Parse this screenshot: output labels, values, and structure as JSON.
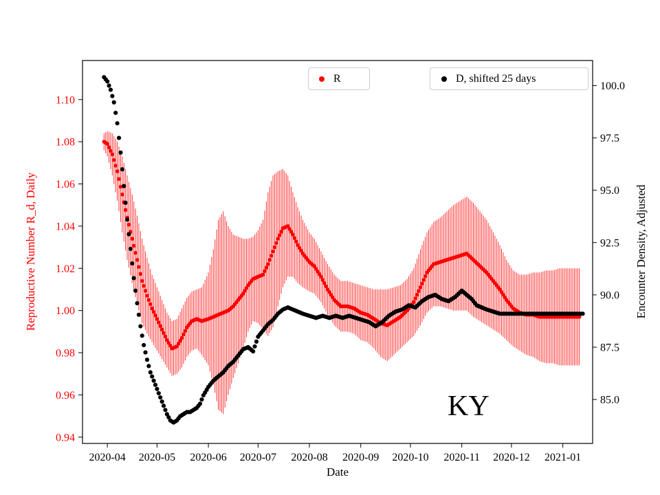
{
  "figure": {
    "state_label": "KY",
    "xlabel": "Date",
    "ylabel_left": "Reproductive Number R_d, Daily",
    "ylabel_right": "Encounter Density, Adjusted",
    "background": "#ffffff",
    "axis_line_color": "#000000",
    "legend_border_color": "#cccccc"
  },
  "legend": {
    "r": {
      "label": "R",
      "marker_color": "#ff0000"
    },
    "d": {
      "label": "D, shifted 25 days",
      "marker_color": "#000000"
    }
  },
  "chart_data": {
    "type": "scatter",
    "title": "",
    "grid": false,
    "legend_position": "top-inside, two separate boxes",
    "x_axis": {
      "label": "Date",
      "range": [
        "2020-03-17",
        "2021-01-19"
      ],
      "ticks": [
        "2020-04",
        "2020-05",
        "2020-06",
        "2020-07",
        "2020-08",
        "2020-09",
        "2020-10",
        "2020-11",
        "2020-12",
        "2021-01"
      ]
    },
    "y_axis_left": {
      "label": "Reproductive Number R_d, Daily",
      "color": "#ff0000",
      "range": [
        0.937,
        1.1185
      ],
      "ticks": [
        "0.94",
        "0.96",
        "0.98",
        "1.00",
        "1.02",
        "1.04",
        "1.06",
        "1.08",
        "1.10"
      ]
    },
    "y_axis_right": {
      "label": "Encounter Density, Adjusted",
      "color": "#000000",
      "range": [
        82.9,
        101.2
      ],
      "ticks": [
        "85.0",
        "87.5",
        "90.0",
        "92.5",
        "95.0",
        "97.5",
        "100.0"
      ]
    },
    "series": [
      {
        "name": "R",
        "axis": "left",
        "color": "#ff0000",
        "marker": "circle",
        "has_error_bars": true,
        "dates": [
          "2020-03-30",
          "2020-04-01",
          "2020-04-04",
          "2020-04-07",
          "2020-04-10",
          "2020-04-13",
          "2020-04-16",
          "2020-04-19",
          "2020-04-22",
          "2020-04-25",
          "2020-04-28",
          "2020-05-01",
          "2020-05-04",
          "2020-05-07",
          "2020-05-10",
          "2020-05-13",
          "2020-05-16",
          "2020-05-19",
          "2020-05-22",
          "2020-05-25",
          "2020-05-28",
          "2020-06-01",
          "2020-06-04",
          "2020-06-07",
          "2020-06-10",
          "2020-06-13",
          "2020-06-16",
          "2020-06-19",
          "2020-06-22",
          "2020-06-25",
          "2020-06-28",
          "2020-07-01",
          "2020-07-04",
          "2020-07-07",
          "2020-07-10",
          "2020-07-13",
          "2020-07-16",
          "2020-07-19",
          "2020-07-22",
          "2020-07-25",
          "2020-07-28",
          "2020-08-01",
          "2020-08-04",
          "2020-08-08",
          "2020-08-12",
          "2020-08-16",
          "2020-08-20",
          "2020-08-24",
          "2020-08-28",
          "2020-09-01",
          "2020-09-05",
          "2020-09-09",
          "2020-09-13",
          "2020-09-17",
          "2020-09-21",
          "2020-09-25",
          "2020-09-29",
          "2020-10-03",
          "2020-10-07",
          "2020-10-11",
          "2020-10-15",
          "2020-10-19",
          "2020-10-23",
          "2020-10-27",
          "2020-10-31",
          "2020-11-04",
          "2020-11-08",
          "2020-11-12",
          "2020-11-16",
          "2020-11-20",
          "2020-11-24",
          "2020-11-28",
          "2020-12-02",
          "2020-12-06",
          "2020-12-10",
          "2020-12-14",
          "2020-12-18",
          "2020-12-22",
          "2020-12-26",
          "2020-12-30",
          "2021-01-03",
          "2021-01-07",
          "2021-01-11"
        ],
        "values": [
          1.08,
          1.079,
          1.074,
          1.066,
          1.055,
          1.044,
          1.034,
          1.024,
          1.014,
          1.007,
          1.001,
          0.996,
          0.991,
          0.986,
          0.982,
          0.983,
          0.987,
          0.992,
          0.995,
          0.996,
          0.995,
          0.996,
          0.997,
          0.998,
          0.999,
          1.0,
          1.002,
          1.005,
          1.008,
          1.012,
          1.015,
          1.016,
          1.017,
          1.022,
          1.028,
          1.034,
          1.039,
          1.04,
          1.036,
          1.031,
          1.027,
          1.023,
          1.021,
          1.016,
          1.01,
          1.005,
          1.002,
          1.002,
          1.001,
          0.999,
          0.998,
          0.996,
          0.994,
          0.993,
          0.995,
          0.997,
          1.0,
          1.004,
          1.011,
          1.018,
          1.022,
          1.023,
          1.024,
          1.025,
          1.026,
          1.027,
          1.024,
          1.021,
          1.018,
          1.014,
          1.01,
          1.005,
          1.001,
          0.999,
          0.998,
          0.998,
          0.997,
          0.997,
          0.997,
          0.997,
          0.997,
          0.997,
          0.997
        ],
        "errors": [
          0.004,
          0.006,
          0.01,
          0.014,
          0.018,
          0.02,
          0.021,
          0.021,
          0.02,
          0.018,
          0.016,
          0.015,
          0.014,
          0.013,
          0.013,
          0.013,
          0.014,
          0.014,
          0.014,
          0.014,
          0.016,
          0.022,
          0.032,
          0.045,
          0.048,
          0.04,
          0.034,
          0.03,
          0.026,
          0.022,
          0.02,
          0.022,
          0.026,
          0.034,
          0.036,
          0.032,
          0.028,
          0.024,
          0.02,
          0.018,
          0.016,
          0.014,
          0.013,
          0.012,
          0.012,
          0.012,
          0.012,
          0.012,
          0.012,
          0.013,
          0.013,
          0.014,
          0.016,
          0.017,
          0.016,
          0.015,
          0.015,
          0.016,
          0.018,
          0.019,
          0.02,
          0.021,
          0.023,
          0.025,
          0.026,
          0.027,
          0.027,
          0.026,
          0.025,
          0.023,
          0.021,
          0.019,
          0.018,
          0.018,
          0.019,
          0.02,
          0.021,
          0.022,
          0.022,
          0.023,
          0.023,
          0.023,
          0.023
        ]
      },
      {
        "name": "D, shifted 25 days",
        "axis": "right",
        "color": "#000000",
        "marker": "circle",
        "has_error_bars": false,
        "dates": [
          "2020-03-30",
          "2020-04-01",
          "2020-04-03",
          "2020-04-05",
          "2020-04-07",
          "2020-04-09",
          "2020-04-11",
          "2020-04-13",
          "2020-04-15",
          "2020-04-17",
          "2020-04-19",
          "2020-04-21",
          "2020-04-23",
          "2020-04-25",
          "2020-04-27",
          "2020-04-29",
          "2020-05-01",
          "2020-05-03",
          "2020-05-05",
          "2020-05-07",
          "2020-05-09",
          "2020-05-11",
          "2020-05-13",
          "2020-05-15",
          "2020-05-17",
          "2020-05-19",
          "2020-05-21",
          "2020-05-23",
          "2020-05-25",
          "2020-05-27",
          "2020-05-29",
          "2020-06-01",
          "2020-06-04",
          "2020-06-07",
          "2020-06-10",
          "2020-06-13",
          "2020-06-16",
          "2020-06-19",
          "2020-06-22",
          "2020-06-25",
          "2020-06-28",
          "2020-07-01",
          "2020-07-04",
          "2020-07-07",
          "2020-07-10",
          "2020-07-13",
          "2020-07-16",
          "2020-07-19",
          "2020-07-22",
          "2020-07-25",
          "2020-07-28",
          "2020-08-01",
          "2020-08-05",
          "2020-08-09",
          "2020-08-13",
          "2020-08-17",
          "2020-08-21",
          "2020-08-25",
          "2020-08-29",
          "2020-09-02",
          "2020-09-06",
          "2020-09-10",
          "2020-09-14",
          "2020-09-18",
          "2020-09-22",
          "2020-09-26",
          "2020-09-30",
          "2020-10-04",
          "2020-10-08",
          "2020-10-12",
          "2020-10-16",
          "2020-10-20",
          "2020-10-24",
          "2020-10-28",
          "2020-11-01",
          "2020-11-04",
          "2020-11-07",
          "2020-11-10",
          "2020-11-13",
          "2020-11-16",
          "2020-11-20",
          "2020-11-24",
          "2020-11-28",
          "2020-12-02",
          "2020-12-06",
          "2020-12-10",
          "2020-12-14",
          "2020-12-18",
          "2020-12-22",
          "2020-12-26",
          "2020-12-30",
          "2021-01-03",
          "2021-01-07",
          "2021-01-11",
          "2021-01-13"
        ],
        "values": [
          100.4,
          100.2,
          99.8,
          99.2,
          98.2,
          96.8,
          95.2,
          93.6,
          92.2,
          90.8,
          89.6,
          88.5,
          87.6,
          86.9,
          86.3,
          85.9,
          85.5,
          85.1,
          84.7,
          84.3,
          84.0,
          83.9,
          84.0,
          84.2,
          84.3,
          84.4,
          84.4,
          84.5,
          84.6,
          84.8,
          85.2,
          85.6,
          85.9,
          86.1,
          86.3,
          86.6,
          86.8,
          87.1,
          87.4,
          87.5,
          87.3,
          88.0,
          88.3,
          88.6,
          88.8,
          89.1,
          89.3,
          89.4,
          89.3,
          89.2,
          89.1,
          89.0,
          88.9,
          89.0,
          88.9,
          89.0,
          88.9,
          89.0,
          88.9,
          88.8,
          88.7,
          88.5,
          88.7,
          89.0,
          89.2,
          89.3,
          89.5,
          89.4,
          89.7,
          89.9,
          90.0,
          89.8,
          89.7,
          89.9,
          90.2,
          90.0,
          89.8,
          89.5,
          89.4,
          89.3,
          89.2,
          89.1,
          89.1,
          89.1,
          89.1,
          89.1,
          89.1,
          89.1,
          89.1,
          89.1,
          89.1,
          89.1,
          89.1,
          89.1,
          89.1
        ]
      }
    ]
  }
}
